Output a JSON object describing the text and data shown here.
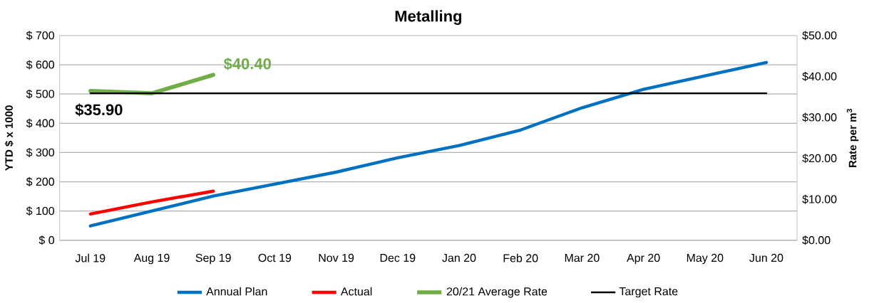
{
  "chart_data": {
    "type": "line",
    "title": "Metalling",
    "ylabel": "YTD $ x 1000",
    "y2label": "Rate per m$^{3}$",
    "categories": [
      "Jul 19",
      "Aug 19",
      "Sep 19",
      "Oct 19",
      "Nov 19",
      "Dec 19",
      "Jan 20",
      "Feb 20",
      "Mar 20",
      "Apr 20",
      "May 20",
      "Jun 20"
    ],
    "series": [
      {
        "name": "Annual Plan",
        "color": "#0070c0",
        "values": [
          49,
          100,
          151,
          192,
          233,
          282,
          324,
          377,
          453,
          516,
          562,
          608
        ]
      },
      {
        "name": "Actual",
        "color": "#ff0000",
        "values": [
          90,
          131,
          168,
          null,
          null,
          null,
          null,
          null,
          null,
          null,
          null,
          null
        ]
      },
      {
        "name": "20/21 Average Rate",
        "color": "#70ad47",
        "axis": "y2",
        "values": [
          36.5,
          35.9,
          40.4,
          null,
          null,
          null,
          null,
          null,
          null,
          null,
          null,
          null
        ]
      },
      {
        "name": "Target Rate",
        "color": "#000000",
        "axis": "y2",
        "values": [
          35.9,
          35.9,
          35.9,
          35.9,
          35.9,
          35.9,
          35.9,
          35.9,
          35.9,
          35.9,
          35.9,
          35.9
        ]
      }
    ],
    "ylim": [
      0,
      700
    ],
    "yticks": [
      {
        "value": 0,
        "label": "$ 0"
      },
      {
        "value": 100,
        "label": "$ 100"
      },
      {
        "value": 200,
        "label": "$ 200"
      },
      {
        "value": 300,
        "label": "$ 300"
      },
      {
        "value": 400,
        "label": "$ 400"
      },
      {
        "value": 500,
        "label": "$ 500"
      },
      {
        "value": 600,
        "label": "$ 600"
      },
      {
        "value": 700,
        "label": "$ 700"
      }
    ],
    "y2lim": [
      0,
      50
    ],
    "y2ticks": [
      {
        "value": 0,
        "label": "$0.00"
      },
      {
        "value": 10,
        "label": "$10.00"
      },
      {
        "value": 20,
        "label": "$20.00"
      },
      {
        "value": 30,
        "label": "$30.00"
      },
      {
        "value": 40,
        "label": "$40.00"
      },
      {
        "value": 50,
        "label": "$50.00"
      }
    ],
    "annotations": [
      "$35.90",
      "$40.40"
    ],
    "grid": "y",
    "legend": "bottom",
    "marker": "none",
    "line_style": "solid"
  }
}
